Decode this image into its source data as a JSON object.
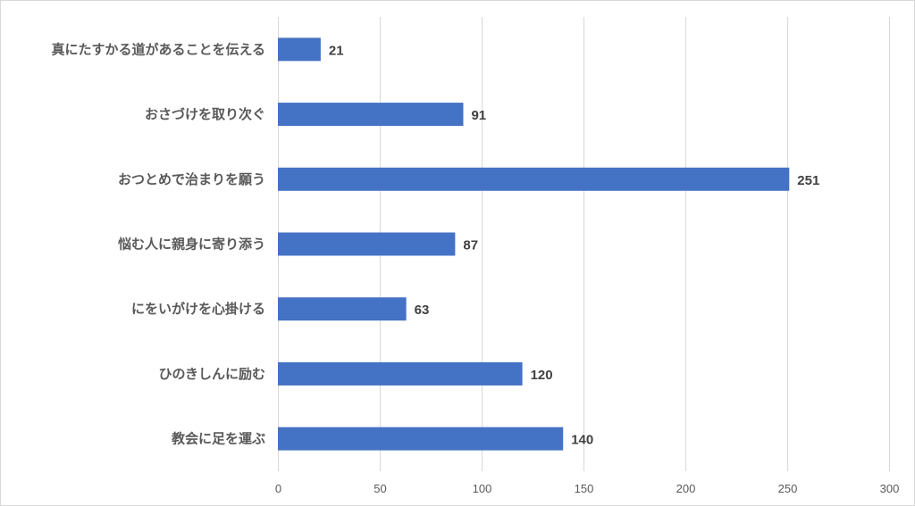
{
  "chart_data": {
    "type": "bar",
    "orientation": "horizontal",
    "categories": [
      "真にたすかる道があることを伝える",
      "おさづけを取り次ぐ",
      "おつとめで治まりを願う",
      "悩む人に親身に寄り添う",
      "にをいがけを心掛ける",
      "ひのきしんに励む",
      "教会に足を運ぶ"
    ],
    "values": [
      21,
      91,
      251,
      87,
      63,
      120,
      140
    ],
    "xlim": [
      0,
      300
    ],
    "ticks": [
      0,
      50,
      100,
      150,
      200,
      250,
      300
    ],
    "grid": true,
    "data_labels": true,
    "bar_color": "#4472c4"
  }
}
